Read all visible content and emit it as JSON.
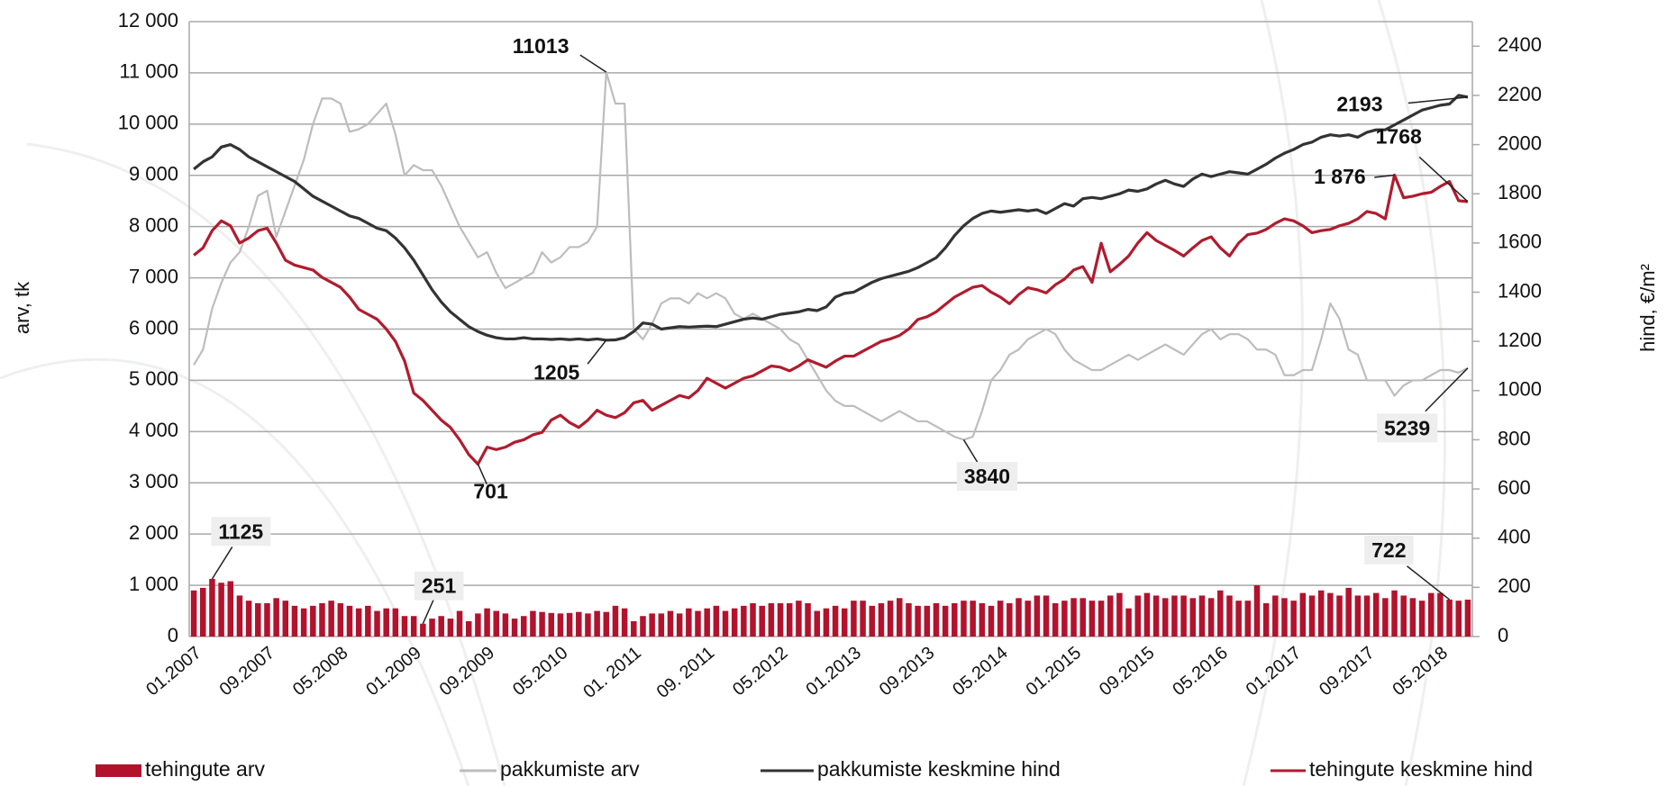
{
  "chart_data": {
    "type": "combo",
    "ylabel": "arv, tk",
    "y2label": "hind, €/m²",
    "grid": true,
    "categories": [
      "01.2007",
      null,
      null,
      null,
      null,
      null,
      null,
      null,
      "09.2007",
      null,
      null,
      null,
      null,
      null,
      null,
      null,
      "05.2008",
      null,
      null,
      null,
      null,
      null,
      null,
      null,
      "01.2009",
      null,
      null,
      null,
      null,
      null,
      null,
      null,
      "09.2009",
      null,
      null,
      null,
      null,
      null,
      null,
      null,
      "05.2010",
      null,
      null,
      null,
      null,
      null,
      null,
      null,
      "01. 2011",
      null,
      null,
      null,
      null,
      null,
      null,
      null,
      "09. 2011",
      null,
      null,
      null,
      null,
      null,
      null,
      null,
      "05.2012",
      null,
      null,
      null,
      null,
      null,
      null,
      null,
      "01.2013",
      null,
      null,
      null,
      null,
      null,
      null,
      null,
      "09.2013",
      null,
      null,
      null,
      null,
      null,
      null,
      null,
      "05.2014",
      null,
      null,
      null,
      null,
      null,
      null,
      null,
      "01.2015",
      null,
      null,
      null,
      null,
      null,
      null,
      null,
      "09.2015",
      null,
      null,
      null,
      null,
      null,
      null,
      null,
      "05.2016",
      null,
      null,
      null,
      null,
      null,
      null,
      null,
      "01.2017",
      null,
      null,
      null,
      null,
      null,
      null,
      null,
      "09.2017",
      null,
      null,
      null,
      null,
      null,
      null,
      null,
      "05.2018",
      null,
      null,
      null
    ],
    "ylim": [
      0,
      12000
    ],
    "yticks": [
      0,
      {
        "value": 1000,
        "label": "1 000"
      },
      {
        "value": 2000,
        "label": "2 000"
      },
      {
        "value": 3000,
        "label": "3 000"
      },
      {
        "value": 4000,
        "label": "4 000"
      },
      {
        "value": 5000,
        "label": "5 000"
      },
      {
        "value": 6000,
        "label": "6 000"
      },
      {
        "value": 7000,
        "label": "7 000"
      },
      {
        "value": 8000,
        "label": "8 000"
      },
      {
        "value": 9000,
        "label": "9 000"
      },
      {
        "value": 10000,
        "label": "10 000"
      },
      {
        "value": 11000,
        "label": "11 000"
      },
      {
        "value": 12000,
        "label": "12 000"
      }
    ],
    "y2lim": [
      0,
      2500
    ],
    "y2ticks": [
      0,
      200,
      400,
      600,
      800,
      1000,
      1200,
      1400,
      1600,
      1800,
      2000,
      2200,
      2400
    ],
    "series": [
      {
        "name": "tehingute arv",
        "type": "bar",
        "color": "#b3122d",
        "values": [
          900,
          950,
          1125,
          1050,
          1080,
          800,
          700,
          650,
          650,
          750,
          700,
          600,
          550,
          600,
          650,
          700,
          650,
          600,
          550,
          600,
          500,
          550,
          550,
          400,
          400,
          251,
          350,
          400,
          350,
          500,
          300,
          450,
          550,
          500,
          450,
          350,
          400,
          500,
          480,
          460,
          450,
          460,
          480,
          450,
          500,
          480,
          600,
          550,
          300,
          400,
          450,
          450,
          500,
          450,
          550,
          500,
          550,
          600,
          500,
          550,
          600,
          650,
          600,
          650,
          650,
          650,
          700,
          650,
          500,
          550,
          600,
          550,
          700,
          700,
          600,
          650,
          700,
          750,
          650,
          600,
          600,
          650,
          600,
          650,
          700,
          700,
          650,
          600,
          700,
          650,
          750,
          700,
          800,
          800,
          650,
          700,
          750,
          750,
          700,
          700,
          800,
          850,
          550,
          800,
          850,
          800,
          750,
          800,
          800,
          750,
          800,
          750,
          900,
          800,
          700,
          700,
          1000,
          650,
          800,
          750,
          700,
          850,
          800,
          900,
          850,
          800,
          950,
          800,
          800,
          850,
          750,
          900,
          800,
          750,
          700,
          850,
          850,
          722,
          700,
          720
        ]
      },
      {
        "name": "pakkumiste arv",
        "type": "line",
        "color": "#bdbdbd",
        "values": [
          5300,
          5600,
          6400,
          6900,
          7300,
          7500,
          8000,
          8600,
          8700,
          7800,
          8300,
          8800,
          9300,
          10000,
          10500,
          10500,
          10400,
          9850,
          9900,
          10000,
          10200,
          10400,
          9800,
          9000,
          9200,
          9100,
          9100,
          8800,
          8400,
          8000,
          7700,
          7400,
          7500,
          7100,
          6800,
          6900,
          7000,
          7100,
          7500,
          7300,
          7400,
          7600,
          7600,
          7700,
          8000,
          11013,
          10400,
          10400,
          6000,
          5800,
          6100,
          6500,
          6600,
          6600,
          6500,
          6700,
          6600,
          6700,
          6600,
          6300,
          6200,
          6300,
          6200,
          6100,
          6000,
          5800,
          5700,
          5400,
          5100,
          4800,
          4600,
          4500,
          4500,
          4400,
          4300,
          4200,
          4300,
          4400,
          4300,
          4200,
          4200,
          4100,
          4000,
          3900,
          3840,
          3900,
          4400,
          5000,
          5200,
          5500,
          5600,
          5800,
          5900,
          6000,
          5900,
          5600,
          5400,
          5300,
          5200,
          5200,
          5300,
          5400,
          5500,
          5400,
          5500,
          5600,
          5700,
          5600,
          5500,
          5700,
          5900,
          6000,
          5800,
          5900,
          5900,
          5800,
          5600,
          5600,
          5500,
          5100,
          5100,
          5200,
          5200,
          5800,
          6500,
          6200,
          5600,
          5500,
          5000,
          5000,
          5000,
          4700,
          4900,
          5000,
          5000,
          5100,
          5200,
          5200,
          5150,
          5239
        ]
      },
      {
        "name": "pakkumiste keskmine hind",
        "type": "line",
        "axis": "y2",
        "color": "#333333",
        "values": [
          1900,
          1930,
          1950,
          1990,
          2000,
          1980,
          1950,
          1930,
          1910,
          1890,
          1870,
          1850,
          1820,
          1790,
          1770,
          1750,
          1730,
          1710,
          1700,
          1680,
          1660,
          1650,
          1620,
          1580,
          1530,
          1470,
          1410,
          1360,
          1320,
          1290,
          1260,
          1240,
          1225,
          1215,
          1210,
          1210,
          1215,
          1210,
          1210,
          1208,
          1210,
          1207,
          1210,
          1206,
          1210,
          1205,
          1206,
          1215,
          1240,
          1275,
          1270,
          1250,
          1255,
          1260,
          1258,
          1260,
          1262,
          1260,
          1270,
          1280,
          1290,
          1295,
          1290,
          1300,
          1310,
          1315,
          1320,
          1330,
          1325,
          1340,
          1380,
          1395,
          1400,
          1420,
          1440,
          1455,
          1465,
          1475,
          1485,
          1500,
          1520,
          1540,
          1580,
          1630,
          1670,
          1700,
          1720,
          1730,
          1725,
          1730,
          1735,
          1730,
          1735,
          1720,
          1740,
          1760,
          1750,
          1780,
          1785,
          1780,
          1790,
          1800,
          1815,
          1810,
          1820,
          1840,
          1855,
          1840,
          1830,
          1860,
          1880,
          1870,
          1880,
          1890,
          1885,
          1880,
          1900,
          1920,
          1945,
          1965,
          1980,
          2000,
          2010,
          2030,
          2040,
          2035,
          2040,
          2030,
          2050,
          2060,
          2060,
          2080,
          2100,
          2120,
          2140,
          2150,
          2160,
          2165,
          2200,
          2193
        ]
      },
      {
        "name": "tehingute keskmine hind",
        "type": "line",
        "axis": "y2",
        "color": "#b01c2e",
        "values": [
          1550,
          1580,
          1650,
          1690,
          1670,
          1600,
          1620,
          1650,
          1660,
          1600,
          1530,
          1510,
          1500,
          1490,
          1460,
          1440,
          1420,
          1380,
          1330,
          1310,
          1290,
          1250,
          1200,
          1120,
          990,
          960,
          920,
          880,
          850,
          800,
          740,
          701,
          770,
          760,
          770,
          790,
          800,
          820,
          830,
          880,
          900,
          870,
          850,
          880,
          920,
          900,
          890,
          910,
          950,
          960,
          920,
          940,
          960,
          980,
          970,
          1000,
          1050,
          1030,
          1010,
          1030,
          1050,
          1060,
          1080,
          1100,
          1095,
          1080,
          1100,
          1125,
          1110,
          1095,
          1120,
          1140,
          1140,
          1160,
          1180,
          1200,
          1210,
          1224,
          1250,
          1289,
          1300,
          1320,
          1350,
          1380,
          1400,
          1420,
          1427,
          1400,
          1380,
          1353,
          1390,
          1418,
          1410,
          1397,
          1430,
          1453,
          1490,
          1504,
          1440,
          1599,
          1483,
          1513,
          1547,
          1600,
          1642,
          1610,
          1590,
          1570,
          1547,
          1580,
          1610,
          1625,
          1580,
          1547,
          1600,
          1634,
          1640,
          1655,
          1680,
          1698,
          1690,
          1670,
          1642,
          1650,
          1655,
          1670,
          1680,
          1698,
          1728,
          1720,
          1698,
          1876,
          1784,
          1790,
          1800,
          1806,
          1830,
          1850,
          1772,
          1768
        ],
        "value_labels": [
          null,
          null,
          null,
          null,
          null,
          null,
          null,
          null,
          null,
          null,
          null,
          null,
          null,
          null,
          null,
          null,
          null,
          null,
          null,
          null,
          null,
          null,
          null,
          null,
          null,
          null,
          null,
          null,
          null,
          null,
          null,
          null,
          null,
          null,
          null,
          null,
          null,
          null,
          null,
          null,
          null,
          null,
          null,
          null,
          null,
          null,
          null,
          null,
          null,
          null,
          null,
          null,
          null,
          null,
          null,
          null,
          null,
          null,
          null,
          null,
          null,
          null,
          null,
          null,
          null,
          null,
          null,
          null,
          null,
          null,
          null,
          null,
          null,
          null,
          null,
          null,
          null,
          null,
          null,
          null,
          null,
          null,
          null,
          null,
          null,
          null,
          null,
          null,
          null,
          null,
          null,
          null,
          null,
          null,
          null,
          null,
          null,
          null,
          null,
          null,
          null,
          null,
          null,
          null,
          null,
          null,
          null,
          null,
          null,
          null,
          null,
          null,
          null,
          null,
          null,
          null,
          null,
          null,
          null,
          null,
          null,
          null,
          null,
          null,
          null,
          null,
          null,
          null,
          null,
          null,
          null,
          "1 876",
          null,
          null,
          null,
          null,
          null,
          null,
          null,
          null
        ]
      }
    ]
  }
}
